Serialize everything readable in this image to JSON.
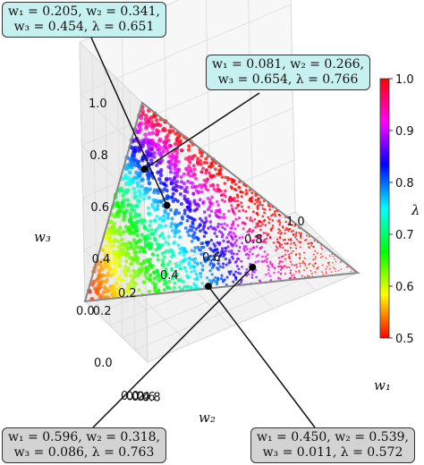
{
  "chart_data": {
    "type": "scatter",
    "projection": "3d",
    "title": "",
    "axes": {
      "x": {
        "label": "w₁",
        "ticks": [
          "0.0",
          "0.2",
          "0.4",
          "0.6",
          "0.8",
          "1.0"
        ],
        "range": [
          0,
          1
        ]
      },
      "y": {
        "label": "w₂",
        "ticks": [
          "0.0",
          "0.2",
          "0.4",
          "0.6",
          "0.8"
        ],
        "range": [
          0,
          1
        ]
      },
      "z": {
        "label": "w₃",
        "ticks": [
          "0.0",
          "0.2",
          "0.4",
          "0.6",
          "0.8",
          "1.0"
        ],
        "range": [
          0,
          1
        ]
      }
    },
    "constraint": "w1 + w2 + w3 = 1",
    "colorbar": {
      "label": "λ",
      "ticks": [
        "0.5",
        "0.6",
        "0.7",
        "0.8",
        "0.9",
        "1.0"
      ],
      "range": [
        0.5,
        1.0
      ],
      "colormap": "hsv"
    },
    "grid": true,
    "annotations": [
      {
        "id": "top-left",
        "w1": 0.205,
        "w2": 0.341,
        "w3": 0.454,
        "lambda": 0.651,
        "lines": [
          "w₁ = 0.205, w₂ = 0.341,",
          "w₃ = 0.454, λ = 0.651"
        ],
        "bg": "#c7f0f0"
      },
      {
        "id": "top-right",
        "w1": 0.081,
        "w2": 0.266,
        "w3": 0.654,
        "lambda": 0.766,
        "lines": [
          "w₁ = 0.081, w₂ = 0.266,",
          "w₃ = 0.654, λ = 0.766"
        ],
        "bg": "#c7f0f0"
      },
      {
        "id": "bottom-left",
        "w1": 0.596,
        "w2": 0.318,
        "w3": 0.086,
        "lambda": 0.763,
        "lines": [
          "w₁ = 0.596, w₂ = 0.318,",
          "w₃ = 0.086, λ = 0.763"
        ],
        "bg": "#d3d3d3"
      },
      {
        "id": "bottom-right",
        "w1": 0.45,
        "w2": 0.539,
        "w3": 0.011,
        "lambda": 0.572,
        "lines": [
          "w₁ = 0.450, w₂ = 0.539,",
          "w₃ = 0.011, λ = 0.572"
        ],
        "bg": "#d3d3d3"
      }
    ]
  }
}
